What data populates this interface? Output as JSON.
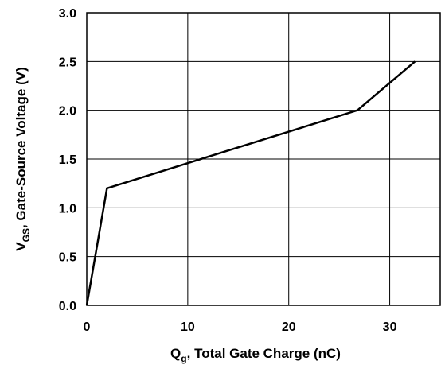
{
  "chart_data": {
    "type": "line",
    "xlabel": {
      "main": "Q",
      "sub": "g",
      "rest": ", Total Gate Charge (nC)"
    },
    "ylabel": {
      "main": "V",
      "sub": "GS",
      "rest": ", Gate-Source Voltage (V)"
    },
    "xlim": [
      0,
      35
    ],
    "ylim": [
      0,
      3.0
    ],
    "x_ticks": [
      0,
      10,
      20,
      30
    ],
    "x_tick_labels": [
      "0",
      "10",
      "20",
      "30"
    ],
    "y_ticks": [
      0,
      0.5,
      1.0,
      1.5,
      2.0,
      2.5,
      3.0
    ],
    "y_tick_labels": [
      "0.0",
      "0.5",
      "1.0",
      "1.5",
      "2.0",
      "2.5",
      "3.0"
    ],
    "x_gridlines": [
      10,
      20,
      30
    ],
    "grid": true,
    "series": [
      {
        "x": [
          0,
          2,
          26.8,
          32.5
        ],
        "y": [
          0,
          1.2,
          2.0,
          2.5
        ]
      }
    ],
    "line_color": "#000000"
  }
}
